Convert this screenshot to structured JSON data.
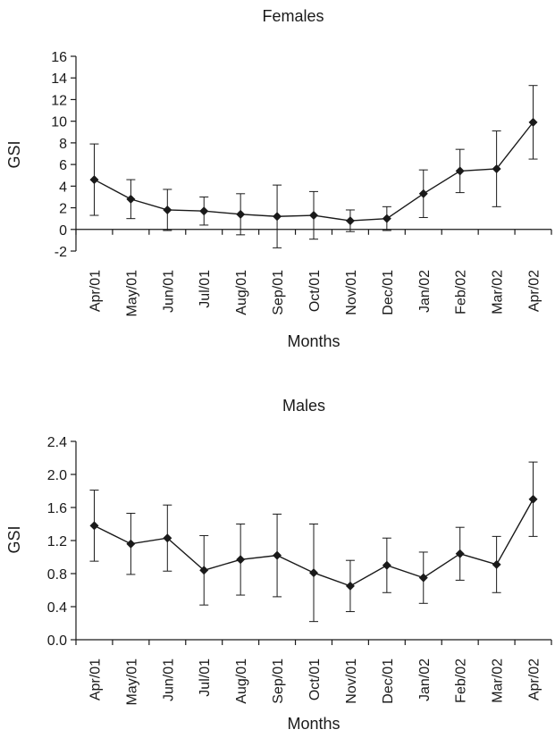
{
  "chart_data": [
    {
      "type": "line",
      "title": "Females",
      "xlabel": "Months",
      "ylabel": "GSI",
      "categories": [
        "Apr/01",
        "May/01",
        "Jun/01",
        "Jul/01",
        "Aug/01",
        "Sep/01",
        "Oct/01",
        "Nov/01",
        "Dec/01",
        "Jan/02",
        "Feb/02",
        "Mar/02",
        "Apr/02"
      ],
      "yticks": [
        "-2",
        "0",
        "2",
        "4",
        "6",
        "8",
        "10",
        "12",
        "14",
        "16"
      ],
      "ylim": [
        -2,
        16
      ],
      "grid": false,
      "series": [
        {
          "values": [
            4.6,
            2.8,
            1.8,
            1.7,
            1.4,
            1.2,
            1.3,
            0.8,
            1.0,
            3.3,
            5.4,
            5.6,
            9.9
          ],
          "error": [
            3.3,
            1.8,
            1.9,
            1.3,
            1.9,
            2.9,
            2.2,
            1.0,
            1.1,
            2.2,
            2.0,
            3.5,
            3.4
          ]
        }
      ]
    },
    {
      "type": "line",
      "title": "Males",
      "xlabel": "Months",
      "ylabel": "GSI",
      "categories": [
        "Apr/01",
        "May/01",
        "Jun/01",
        "Jul/01",
        "Aug/01",
        "Sep/01",
        "Oct/01",
        "Nov/01",
        "Dec/01",
        "Jan/02",
        "Feb/02",
        "Mar/02",
        "Apr/02"
      ],
      "yticks": [
        "0.0",
        "0.4",
        "0.8",
        "1.2",
        "1.6",
        "2.0",
        "2.4"
      ],
      "ylim": [
        0,
        2.4
      ],
      "grid": false,
      "series": [
        {
          "values": [
            1.38,
            1.16,
            1.23,
            0.84,
            0.97,
            1.02,
            0.81,
            0.65,
            0.9,
            0.75,
            1.04,
            0.91,
            1.7
          ],
          "error": [
            0.43,
            0.37,
            0.4,
            0.42,
            0.43,
            0.5,
            0.59,
            0.31,
            0.33,
            0.31,
            0.32,
            0.34,
            0.45
          ]
        }
      ]
    }
  ]
}
